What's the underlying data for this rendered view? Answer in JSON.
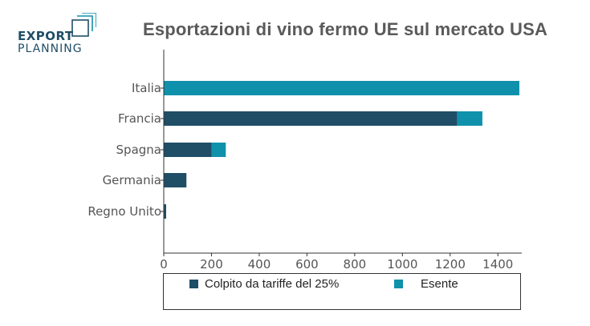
{
  "logo": {
    "line1": "EXPORT",
    "line2": "PLANNING",
    "color": "#1f4e66"
  },
  "colors": {
    "colpito": "#1f4e66",
    "esente": "#0f91ab",
    "axis": "#333333"
  },
  "chart_data": {
    "type": "bar",
    "orientation": "horizontal",
    "stacked": true,
    "title": "Esportazioni di vino fermo UE sul mercato USA",
    "categories": [
      "Italia",
      "Francia",
      "Spagna",
      "Germania",
      "Regno Unito"
    ],
    "series": [
      {
        "name": "Colpito da tariffe del 25%",
        "values": [
          0,
          1230,
          200,
          95,
          10
        ]
      },
      {
        "name": "Esente",
        "values": [
          1490,
          105,
          60,
          0,
          0
        ]
      }
    ],
    "xlim": [
      0,
      1500
    ],
    "xticks": [
      0,
      200,
      400,
      600,
      800,
      1000,
      1200,
      1400
    ],
    "grid": false,
    "legend_position": "bottom"
  }
}
